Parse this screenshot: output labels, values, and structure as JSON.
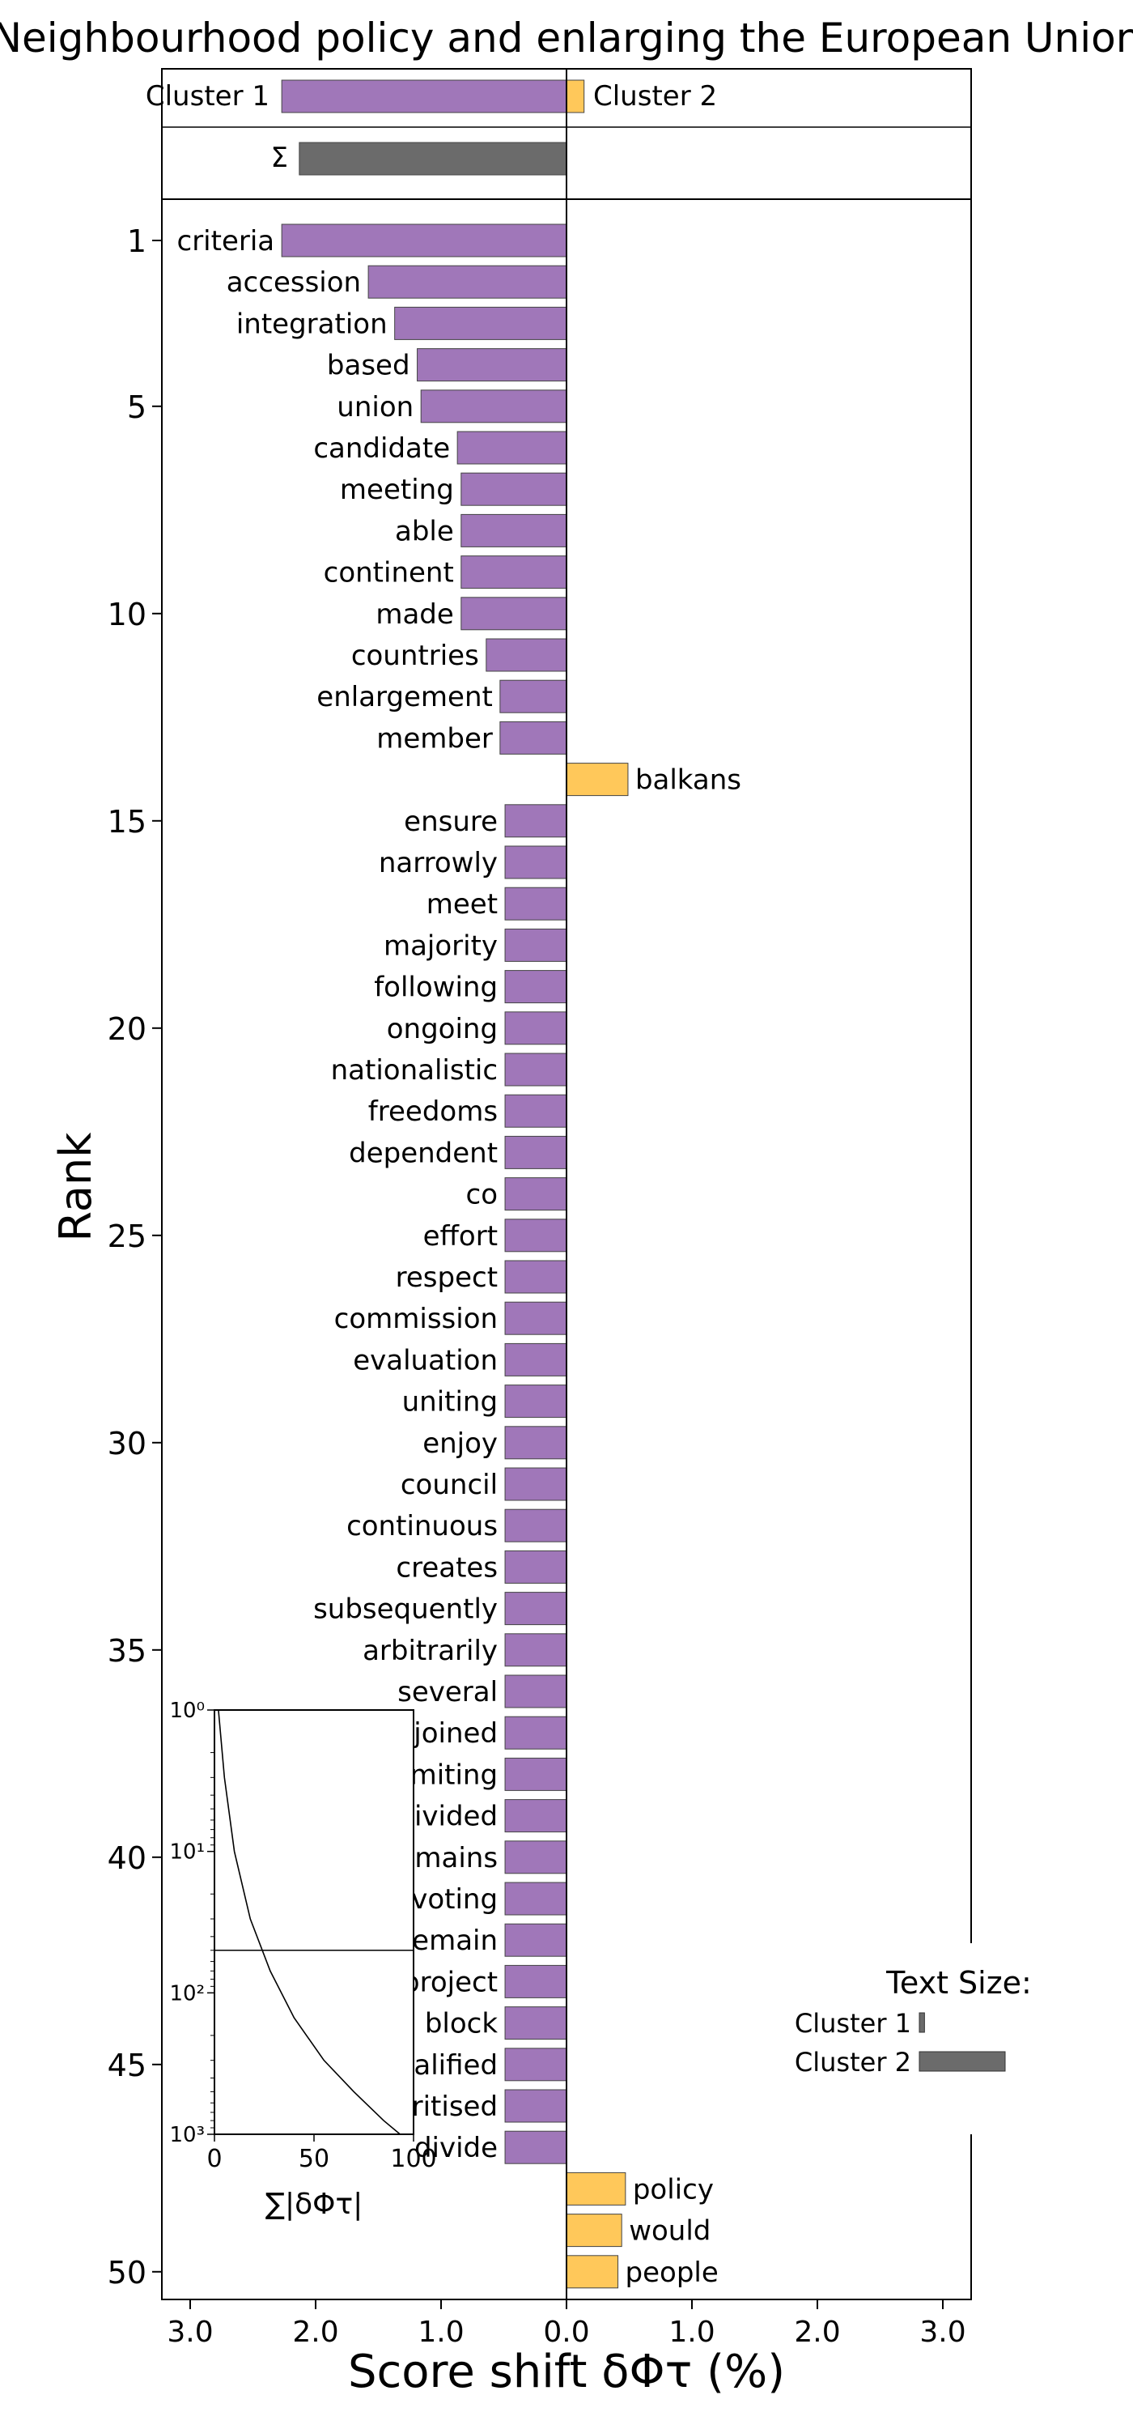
{
  "chart_data": {
    "type": "bar",
    "title": "Neighbourhood policy and enlarging the European Union",
    "xlabel": "Score shift δΦτ (%)",
    "ylabel": "Rank",
    "xlim": [
      -3.2,
      3.2
    ],
    "xticks": [
      -3,
      -2,
      -1,
      0,
      1,
      2,
      3
    ],
    "xtick_labels": [
      "3.0",
      "2.0",
      "1.0",
      "0.0",
      "1.0",
      "2.0",
      "3.0"
    ],
    "yticks": [
      1,
      5,
      10,
      15,
      20,
      25,
      30,
      35,
      40,
      45,
      50
    ],
    "ytick_labels": [
      "1",
      "5",
      "10",
      "15",
      "20",
      "25",
      "30",
      "35",
      "40",
      "45",
      "50"
    ],
    "colors": {
      "cluster1": "#a077b9",
      "cluster2": "#ffc85a",
      "sum": "#6b6b6b"
    },
    "summary": {
      "cluster1_label": "Cluster 1",
      "cluster2_label": "Cluster 2",
      "cluster1_value": -2.27,
      "cluster2_value": 0.14,
      "sum_label": "Σ",
      "sum_value": -2.13
    },
    "words": [
      {
        "rank": 1,
        "word": "criteria",
        "value": -2.27
      },
      {
        "rank": 2,
        "word": "accession",
        "value": -1.58
      },
      {
        "rank": 3,
        "word": "integration",
        "value": -1.37
      },
      {
        "rank": 4,
        "word": "based",
        "value": -1.19
      },
      {
        "rank": 5,
        "word": "union",
        "value": -1.16
      },
      {
        "rank": 6,
        "word": "candidate",
        "value": -0.87
      },
      {
        "rank": 7,
        "word": "meeting",
        "value": -0.84
      },
      {
        "rank": 8,
        "word": "able",
        "value": -0.84
      },
      {
        "rank": 9,
        "word": "continent",
        "value": -0.84
      },
      {
        "rank": 10,
        "word": "made",
        "value": -0.84
      },
      {
        "rank": 11,
        "word": "countries",
        "value": -0.64
      },
      {
        "rank": 12,
        "word": "enlargement",
        "value": -0.53
      },
      {
        "rank": 13,
        "word": "member",
        "value": -0.53
      },
      {
        "rank": 14,
        "word": "balkans",
        "value": 0.49
      },
      {
        "rank": 15,
        "word": "ensure",
        "value": -0.49
      },
      {
        "rank": 16,
        "word": "narrowly",
        "value": -0.49
      },
      {
        "rank": 17,
        "word": "meet",
        "value": -0.49
      },
      {
        "rank": 18,
        "word": "majority",
        "value": -0.49
      },
      {
        "rank": 19,
        "word": "following",
        "value": -0.49
      },
      {
        "rank": 20,
        "word": "ongoing",
        "value": -0.49
      },
      {
        "rank": 21,
        "word": "nationalistic",
        "value": -0.49
      },
      {
        "rank": 22,
        "word": "freedoms",
        "value": -0.49
      },
      {
        "rank": 23,
        "word": "dependent",
        "value": -0.49
      },
      {
        "rank": 24,
        "word": "co",
        "value": -0.49
      },
      {
        "rank": 25,
        "word": "effort",
        "value": -0.49
      },
      {
        "rank": 26,
        "word": "respect",
        "value": -0.49
      },
      {
        "rank": 27,
        "word": "commission",
        "value": -0.49
      },
      {
        "rank": 28,
        "word": "evaluation",
        "value": -0.49
      },
      {
        "rank": 29,
        "word": "uniting",
        "value": -0.49
      },
      {
        "rank": 30,
        "word": "enjoy",
        "value": -0.49
      },
      {
        "rank": 31,
        "word": "council",
        "value": -0.49
      },
      {
        "rank": 32,
        "word": "continuous",
        "value": -0.49
      },
      {
        "rank": 33,
        "word": "creates",
        "value": -0.49
      },
      {
        "rank": 34,
        "word": "subsequently",
        "value": -0.49
      },
      {
        "rank": 35,
        "word": "arbitrarily",
        "value": -0.49
      },
      {
        "rank": 36,
        "word": "several",
        "value": -0.49
      },
      {
        "rank": 37,
        "word": "joined",
        "value": -0.49
      },
      {
        "rank": 38,
        "word": "commiting",
        "value": -0.49
      },
      {
        "rank": 39,
        "word": "divided",
        "value": -0.49
      },
      {
        "rank": 40,
        "word": "remains",
        "value": -0.49
      },
      {
        "rank": 41,
        "word": "voting",
        "value": -0.49
      },
      {
        "rank": 42,
        "word": "remain",
        "value": -0.49
      },
      {
        "rank": 43,
        "word": "project",
        "value": -0.49
      },
      {
        "rank": 44,
        "word": "block",
        "value": -0.49
      },
      {
        "rank": 45,
        "word": "qualified",
        "value": -0.49
      },
      {
        "rank": 46,
        "word": "prioritised",
        "value": -0.49
      },
      {
        "rank": 47,
        "word": "divide",
        "value": -0.49
      },
      {
        "rank": 48,
        "word": "policy",
        "value": 0.47
      },
      {
        "rank": 49,
        "word": "would",
        "value": 0.44
      },
      {
        "rank": 50,
        "word": "people",
        "value": 0.41
      }
    ],
    "inset": {
      "xlabel": "∑|δΦτ|",
      "xticks": [
        0,
        50,
        100
      ],
      "xtick_labels": [
        "0",
        "50",
        "100"
      ],
      "xlim": [
        0,
        100
      ],
      "ylim": [
        1,
        1000
      ],
      "y_log": true,
      "ytick_labels": [
        "10⁰",
        "10¹",
        "10²",
        "10³"
      ],
      "hline_rank": 50,
      "curve": [
        [
          2,
          1
        ],
        [
          5,
          3
        ],
        [
          10,
          10
        ],
        [
          18,
          30
        ],
        [
          28,
          70
        ],
        [
          40,
          150
        ],
        [
          55,
          300
        ],
        [
          70,
          500
        ],
        [
          85,
          800
        ],
        [
          100,
          1200
        ]
      ]
    },
    "text_size_legend": {
      "title": "Text Size:",
      "cluster1_label": "Cluster 1",
      "cluster2_label": "Cluster 2",
      "cluster1_ratio": 0.06,
      "cluster2_ratio": 1.0
    }
  }
}
